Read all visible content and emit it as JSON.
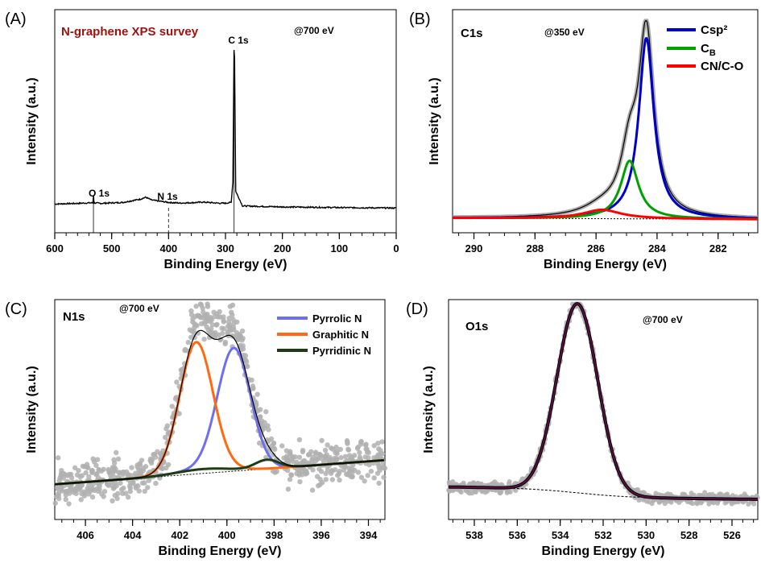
{
  "chart_data": [
    {
      "panel": "(A)",
      "type": "line",
      "title": "N-graphene XPS survey",
      "note": "@700 eV",
      "xlabel": "Binding Energy (eV)",
      "ylabel": "Intensity (a.u.)",
      "xlim": [
        600,
        0
      ],
      "xticks": [
        "600",
        "500",
        "400",
        "300",
        "200",
        "100",
        "0"
      ],
      "annotations": [
        {
          "text": "C 1s",
          "x": 285
        },
        {
          "text": "N 1s",
          "x": 400
        },
        {
          "text": "O 1s",
          "x": 532
        }
      ],
      "series": [
        {
          "x": [
            600,
            560,
            540,
            533,
            532,
            531,
            520,
            480,
            450,
            440,
            430,
            400,
            380,
            360,
            340,
            310,
            300,
            290,
            287,
            285,
            284,
            282,
            270,
            200,
            100,
            0
          ],
          "y": [
            0.04,
            0.044,
            0.047,
            0.047,
            0.095,
            0.047,
            0.044,
            0.05,
            0.07,
            0.082,
            0.065,
            0.05,
            0.046,
            0.048,
            0.052,
            0.045,
            0.045,
            0.05,
            0.18,
            1.0,
            0.95,
            0.12,
            0.028,
            0.022,
            0.018,
            0.015
          ]
        }
      ]
    },
    {
      "panel": "(B)",
      "type": "line",
      "title": "C1s",
      "note": "@350 eV",
      "xlabel": "Binding Energy (eV)",
      "ylabel": "Intensity (a.u.)",
      "xlim": [
        290.7,
        280.7
      ],
      "xticks": [
        "290",
        "288",
        "286",
        "284",
        "282"
      ],
      "legend_position": "top-right",
      "series": [
        {
          "name": "Csp²",
          "color": "#0000cc",
          "peak": {
            "center": 284.35,
            "height": 0.81,
            "width": 0.3
          }
        },
        {
          "name": "C",
          "name_sub": "B",
          "color": "#00a000",
          "peak": {
            "center": 284.9,
            "height": 0.26,
            "width": 0.35
          }
        },
        {
          "name": "CN/C-O",
          "color": "#ff0000",
          "peak": {
            "center": 285.8,
            "height": 0.04,
            "width": 0.75
          }
        }
      ],
      "envelope": {
        "color": "#000000",
        "fit_color": "#aaaaaa"
      }
    },
    {
      "panel": "(C)",
      "type": "scatter",
      "title": "N1s",
      "note": "@700 eV",
      "xlabel": "Binding Energy (eV)",
      "ylabel": "Intensity (a.u.)",
      "xlim": [
        407.3,
        393.3
      ],
      "xticks": [
        "406",
        "404",
        "402",
        "400",
        "398",
        "396",
        "394"
      ],
      "legend_position": "top-right",
      "series": [
        {
          "name": "Pyrrolic N",
          "color": "#6e6ef0",
          "peak": {
            "center": 399.7,
            "height": 0.55,
            "width": 0.7
          }
        },
        {
          "name": "Graphitic N",
          "color": "#ff6a10",
          "peak": {
            "center": 401.3,
            "height": 0.58,
            "width": 0.7
          }
        },
        {
          "name": "Pyrridinic N",
          "color": "#1e3c14",
          "peak": {
            "center": 398.3,
            "height": 0.04,
            "width": 0.5
          }
        }
      ]
    },
    {
      "panel": "(D)",
      "type": "scatter",
      "title": "O1s",
      "note": "@700 eV",
      "xlabel": "Binding Energy (eV)",
      "ylabel": "Intensity (a.u.)",
      "xlim": [
        539.2,
        524.8
      ],
      "xticks": [
        "538",
        "536",
        "534",
        "532",
        "530",
        "528",
        "526"
      ],
      "series": [
        {
          "color": "#5a0f44",
          "peak": {
            "center": 533.2,
            "height": 0.86,
            "width": 0.95
          }
        }
      ]
    }
  ]
}
